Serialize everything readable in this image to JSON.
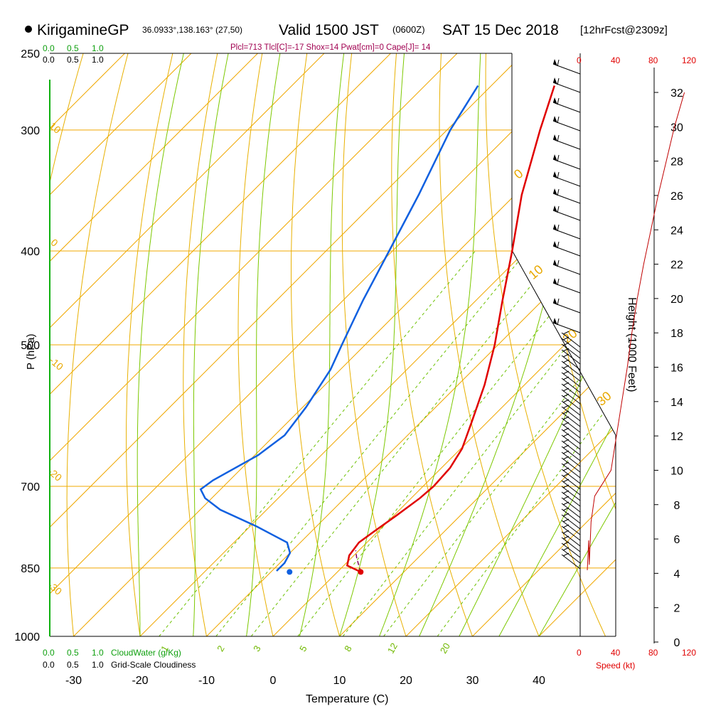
{
  "header": {
    "station": "KirigamineGP",
    "coords": "36.0933°,138.163° (27,50)",
    "valid_main": "Valid 1500 JST",
    "valid_utc": "(0600Z)",
    "valid_date": "SAT 15 Dec 2018",
    "forecast": "[12hrFcst@2309z]",
    "params": "Plcl=713 Tlcl[C]=-17 Shox=14 Pwat[cm]=0 Cape[J]= 14"
  },
  "left_scales": {
    "cloudwater_ticks": [
      "0.0",
      "0.5",
      "1.0"
    ],
    "cloudiness_ticks": [
      "0.0",
      "0.5",
      "1.0"
    ],
    "cloudwater_label": "CloudWater (g/Kg)",
    "cloudiness_label": "Grid-Scale Cloudiness"
  },
  "speed_axis": {
    "ticks": [
      "0",
      "40",
      "80",
      "120"
    ],
    "label": "Speed (kt)"
  },
  "height_axis": {
    "label": "Height (1000 Feet)",
    "ticks": [
      "0",
      "2",
      "4",
      "6",
      "8",
      "10",
      "12",
      "14",
      "16",
      "18",
      "20",
      "22",
      "24",
      "26",
      "28",
      "30",
      "32"
    ]
  },
  "colors": {
    "isotherm": "#f0a800",
    "adiabat_dry": "#e8b000",
    "adiabat_moist": "#7cc800",
    "mixing_ratio": "#6cc000",
    "temperature": "#e00000",
    "dewpoint": "#1060e0",
    "cloud": "#00a000",
    "speed": "#c00000",
    "params": "#a00050"
  },
  "chart_data": {
    "type": "skew-t",
    "title": "KirigamineGP 36.0933°,138.163° (27,50) Valid 1500 JST (0600Z) SAT 15 Dec 2018 [12hrFcst@2309z]",
    "xlabel": "Temperature (C)",
    "ylabel": "P (hPa)",
    "xlim": [
      -35,
      35
    ],
    "pressure_range": [
      1000,
      250
    ],
    "x_ticks": [
      "-30",
      "-20",
      "-10",
      "0",
      "10",
      "20",
      "30",
      "40"
    ],
    "pressure_ticks": [
      "250",
      "300",
      "400",
      "500",
      "700",
      "850",
      "1000"
    ],
    "isotherm_labels": [
      "10",
      "0",
      "-10",
      "-20",
      "-30",
      "0",
      "10",
      "20",
      "30"
    ],
    "mixing_ratio_labels": [
      "1",
      "2",
      "3",
      "5",
      "8",
      "12",
      "20"
    ],
    "temperature": [
      {
        "p": 858,
        "t": 3.5
      },
      {
        "p": 845,
        "t": 0.5
      },
      {
        "p": 825,
        "t": -0.7
      },
      {
        "p": 800,
        "t": -1.2
      },
      {
        "p": 780,
        "t": -0.6
      },
      {
        "p": 750,
        "t": 0.4
      },
      {
        "p": 720,
        "t": 1.3
      },
      {
        "p": 700,
        "t": 1.6
      },
      {
        "p": 670,
        "t": 1.3
      },
      {
        "p": 640,
        "t": 0.2
      },
      {
        "p": 600,
        "t": -2.4
      },
      {
        "p": 550,
        "t": -6.0
      },
      {
        "p": 500,
        "t": -10.5
      },
      {
        "p": 450,
        "t": -16.0
      },
      {
        "p": 400,
        "t": -22.0
      },
      {
        "p": 350,
        "t": -29.0
      },
      {
        "p": 300,
        "t": -36.0
      },
      {
        "p": 270,
        "t": -40.5
      }
    ],
    "dewpoint": [
      {
        "p": 856,
        "t": -9.3
      },
      {
        "p": 840,
        "t": -9.3
      },
      {
        "p": 820,
        "t": -10.0
      },
      {
        "p": 800,
        "t": -12.0
      },
      {
        "p": 770,
        "t": -19.0
      },
      {
        "p": 740,
        "t": -27.0
      },
      {
        "p": 720,
        "t": -31.0
      },
      {
        "p": 705,
        "t": -33.0
      },
      {
        "p": 690,
        "t": -32.5
      },
      {
        "p": 650,
        "t": -29.5
      },
      {
        "p": 620,
        "t": -28.5
      },
      {
        "p": 580,
        "t": -29.5
      },
      {
        "p": 530,
        "t": -31.5
      },
      {
        "p": 500,
        "t": -33.5
      },
      {
        "p": 450,
        "t": -37.0
      },
      {
        "p": 400,
        "t": -40.5
      },
      {
        "p": 350,
        "t": -44.5
      },
      {
        "p": 300,
        "t": -49.5
      },
      {
        "p": 270,
        "t": -52.0
      }
    ],
    "parcel": [
      {
        "p": 858,
        "t": 3.5
      },
      {
        "p": 830,
        "t": 0.8
      },
      {
        "p": 815,
        "t": -0.5
      }
    ],
    "surface_temp": 3.5,
    "surface_dewpoint": -7.2,
    "surface_pressure": 858,
    "wind_speed_kt": [
      {
        "h": 4.5,
        "s": 10
      },
      {
        "h": 7.0,
        "s": 12
      },
      {
        "h": 8.5,
        "s": 16
      },
      {
        "h": 10.0,
        "s": 34
      },
      {
        "h": 12.0,
        "s": 40
      },
      {
        "h": 14.0,
        "s": 46
      },
      {
        "h": 16.0,
        "s": 52
      },
      {
        "h": 18.0,
        "s": 57
      },
      {
        "h": 20.0,
        "s": 63
      },
      {
        "h": 22.0,
        "s": 70
      },
      {
        "h": 24.0,
        "s": 78
      },
      {
        "h": 26.0,
        "s": 86
      },
      {
        "h": 28.0,
        "s": 95
      },
      {
        "h": 30.0,
        "s": 104
      },
      {
        "h": 32.0,
        "s": 115
      }
    ]
  }
}
